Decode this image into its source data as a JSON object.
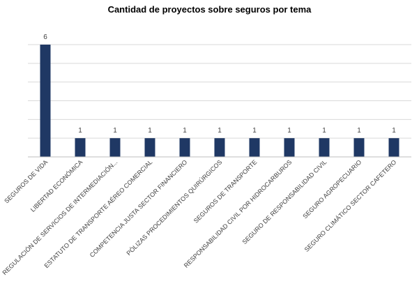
{
  "chart_data": {
    "type": "bar",
    "title": "Cantidad de proyectos sobre seguros por tema",
    "xlabel": "",
    "ylabel": "",
    "categories": [
      "SEGUROS DE VIDA",
      "LIBERTAD ECONÓMICA",
      "REGULACIÓN DE SERVICIOS DE INTERMEDIACIÓN...",
      "ESTATUTO DE TRANSPORTE AÉREO COMERCIAL",
      "COMPETENCIA JUSTA SECTOR FINANCIERO",
      "PÓLIZAS PROCEDIMIENTOS QUIRÚRGICOS",
      "SEGUROS DE TRANSPORTE",
      "RESPONSABILIDAD CIVIL POR HIDROCARBUROS",
      "SEGURO DE RESPONSABILIDAD CIVIL",
      "SEGURO AGROPECUARIO",
      "SEGURO CLIMÁTICO SECTOR CAFETERO"
    ],
    "values": [
      6,
      1,
      1,
      1,
      1,
      1,
      1,
      1,
      1,
      1,
      1
    ],
    "ylim": [
      0,
      6
    ],
    "grid": true,
    "data_labels": true,
    "legend": "none",
    "bar_color": "#1f3864",
    "grid_color": "#d9d9d9",
    "axis_color": "#bfbfbf"
  }
}
